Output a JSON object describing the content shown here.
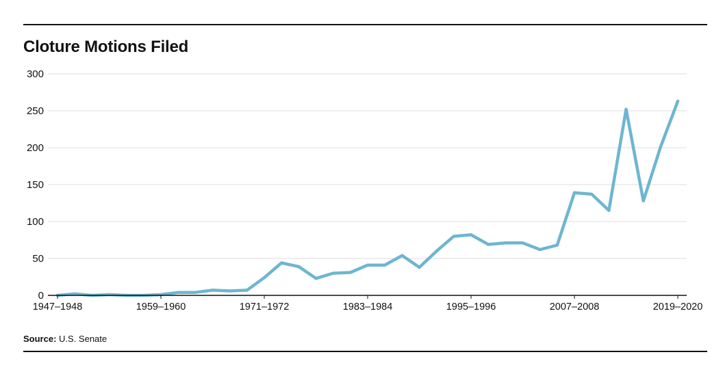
{
  "title": "Cloture Motions Filed",
  "source": {
    "label": "Source:",
    "text": "U.S. Senate"
  },
  "colors": {
    "line": "#6db6d1",
    "grid": "#dcdcdc",
    "axis": "#111111",
    "text": "#111111"
  },
  "chart_data": {
    "type": "line",
    "title": "Cloture Motions Filed",
    "xlabel": "",
    "ylabel": "",
    "ylim": [
      0,
      300
    ],
    "yticks": [
      0,
      50,
      100,
      150,
      200,
      250,
      300
    ],
    "grid": true,
    "x_tick_labels": [
      "1947–1948",
      "1959–1960",
      "1971–1972",
      "1983–1984",
      "1995–1996",
      "2007–2008",
      "2019–2020"
    ],
    "x": [
      "1947–1948",
      "1949–1950",
      "1951–1952",
      "1953–1954",
      "1955–1956",
      "1957–1958",
      "1959–1960",
      "1961–1962",
      "1963–1964",
      "1965–1966",
      "1967–1968",
      "1969–1970",
      "1971–1972",
      "1973–1974",
      "1975–1976",
      "1977–1978",
      "1979–1980",
      "1981–1982",
      "1983–1984",
      "1985–1986",
      "1987–1988",
      "1989–1990",
      "1991–1992",
      "1993–1994",
      "1995–1996",
      "1997–1998",
      "1999–2000",
      "2001–2002",
      "2003–2004",
      "2005–2006",
      "2007–2008",
      "2009–2010",
      "2011–2012",
      "2013–2014",
      "2015–2016",
      "2017–2018",
      "2019–2020"
    ],
    "series": [
      {
        "values": [
          0,
          2,
          0,
          1,
          0,
          0,
          1,
          4,
          4,
          7,
          6,
          7,
          24,
          44,
          39,
          23,
          30,
          31,
          41,
          41,
          54,
          38,
          60,
          80,
          82,
          69,
          71,
          71,
          62,
          68,
          139,
          137,
          115,
          252,
          128,
          201,
          263
        ]
      }
    ]
  }
}
